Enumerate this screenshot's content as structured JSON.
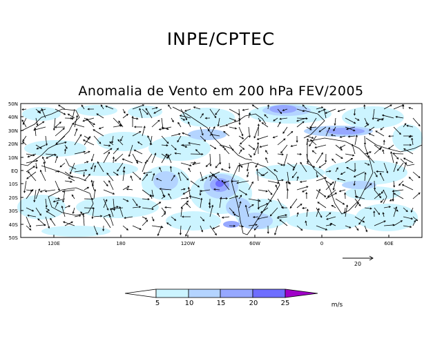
{
  "header": {
    "title": "INPE/CPTEC"
  },
  "map": {
    "title": "Anomalia de Vento em 200 hPa FEV/2005",
    "lat_labels": [
      "50N",
      "40N",
      "30N",
      "20N",
      "10N",
      "EQ",
      "10S",
      "20S",
      "30S",
      "40S",
      "50S"
    ],
    "lon_labels": [
      "120E",
      "180",
      "120W",
      "60W",
      "0",
      "60E"
    ],
    "reference_vector": {
      "value": "20"
    }
  },
  "colorbar": {
    "ticks": [
      "5",
      "10",
      "15",
      "20",
      "25"
    ],
    "unit": "m/s",
    "colors": [
      "#ffffff",
      "#ccf4ff",
      "#b4d4ff",
      "#96a8ff",
      "#6e6eff",
      "#a000c8"
    ]
  },
  "colors": {
    "land_outline": "#000000",
    "arrows": "#000000",
    "frame": "#000000"
  }
}
